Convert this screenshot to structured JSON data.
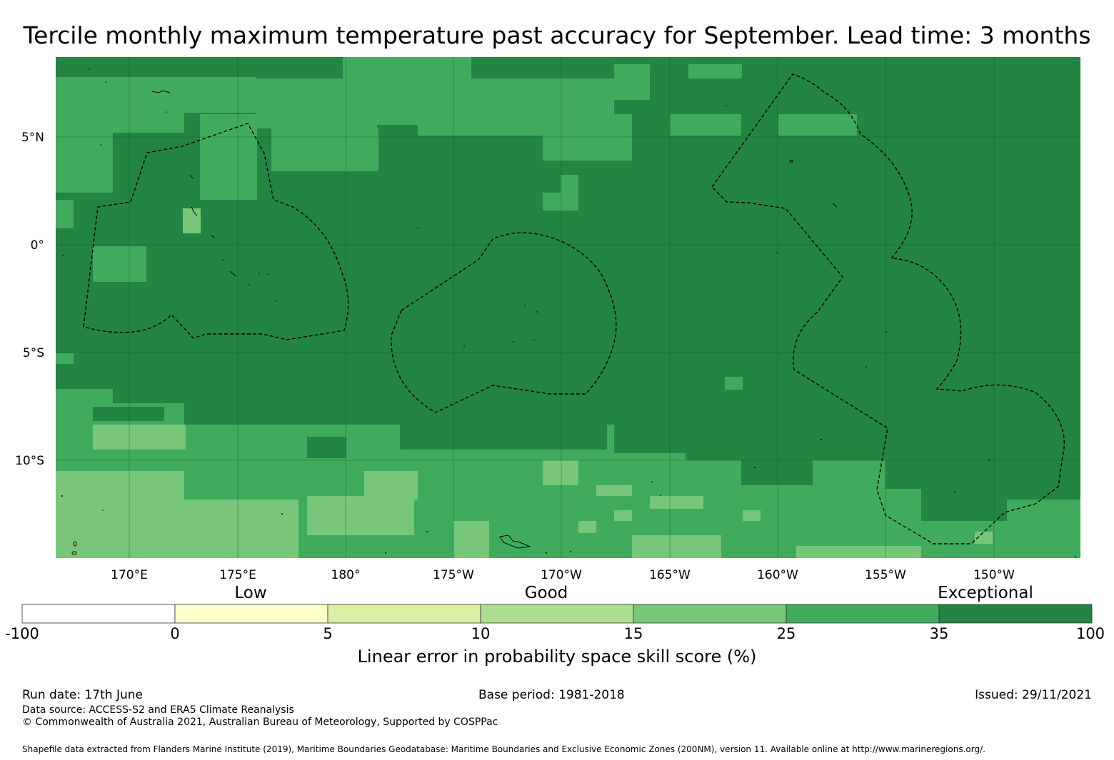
{
  "title": "Tercile monthly maximum temperature past accuracy for September. Lead time: 3 months",
  "map": {
    "latitude_labels": [
      "5°N",
      "0°",
      "5°S",
      "10°S"
    ],
    "longitude_labels": [
      "170°E",
      "175°E",
      "180°",
      "175°W",
      "170°W",
      "165°W",
      "160°W",
      "155°W",
      "150°W"
    ],
    "base_fill_color": "#238443",
    "boundary_style": "dashed EEZ outlines"
  },
  "colorbar": {
    "categories": [
      "Low",
      "Good",
      "Exceptional"
    ],
    "ticks": [
      "-100",
      "0",
      "5",
      "10",
      "15",
      "25",
      "35",
      "100"
    ],
    "colors": [
      "#ffffff",
      "#ffffcc",
      "#d9f0a3",
      "#addd8e",
      "#78c679",
      "#41ab5d",
      "#238443"
    ],
    "label": "Linear error in probability space skill score (%)"
  },
  "footer": {
    "run_date": "Run date: 17th June",
    "base_period": "Base period: 1981-2018",
    "issued": "Issued: 29/11/2021",
    "data_source": "Data source: ACCESS-S2 and ERA5 Climate Reanalysis",
    "copyright": "© Commonwealth of Australia 2021, Australian Bureau of Meteorology, Supported by COSPPac",
    "shapefile": "Shapefile data extracted from Flanders Marine Institute (2019), Maritime Boundaries Geodatabase: Maritime Boundaries and Exclusive Economic Zones (200NM), version 11. Available online at http://www.marineregions.org/."
  }
}
